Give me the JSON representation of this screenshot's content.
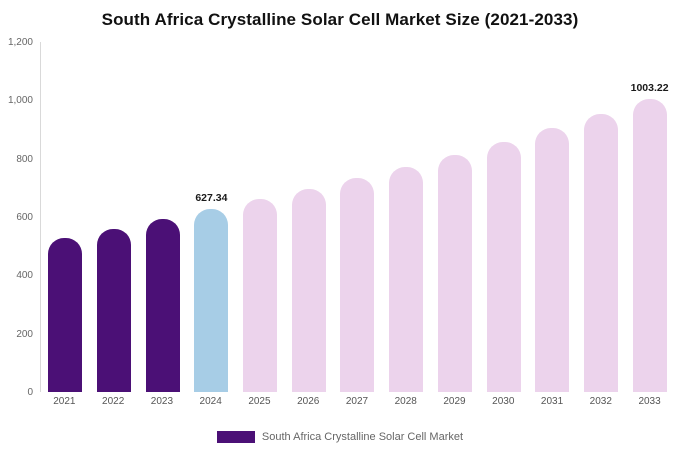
{
  "legend": {
    "label": "South Africa Crystalline Solar Cell Market",
    "color": "#4b1076"
  },
  "chart_data": {
    "type": "bar",
    "title": "South Africa Crystalline Solar Cell Market Size (2021-2033)",
    "xlabel": "",
    "ylabel": "",
    "categories": [
      "2021",
      "2022",
      "2023",
      "2024",
      "2025",
      "2026",
      "2027",
      "2028",
      "2029",
      "2030",
      "2031",
      "2032",
      "2033"
    ],
    "values": [
      527,
      558,
      592,
      627.34,
      661,
      696,
      733,
      773,
      814,
      858,
      904,
      952,
      1003.22
    ],
    "color_roles": [
      "past",
      "past",
      "past",
      "current",
      "forecast",
      "forecast",
      "forecast",
      "forecast",
      "forecast",
      "forecast",
      "forecast",
      "forecast",
      "forecast"
    ],
    "bar_colors": {
      "past": "#4b1076",
      "current": "#a7cde6",
      "forecast": "#ecd3ec"
    },
    "data_labels": {
      "2024": "627.34",
      "2033": "1003.22"
    },
    "ylim": [
      0,
      1200
    ],
    "yticks": [
      0,
      200,
      400,
      600,
      800,
      1000,
      1200
    ],
    "ytick_labels": [
      "0",
      "200",
      "400",
      "600",
      "800",
      "1,000",
      "1,200"
    ],
    "grid": false,
    "legend_position": "bottom"
  }
}
